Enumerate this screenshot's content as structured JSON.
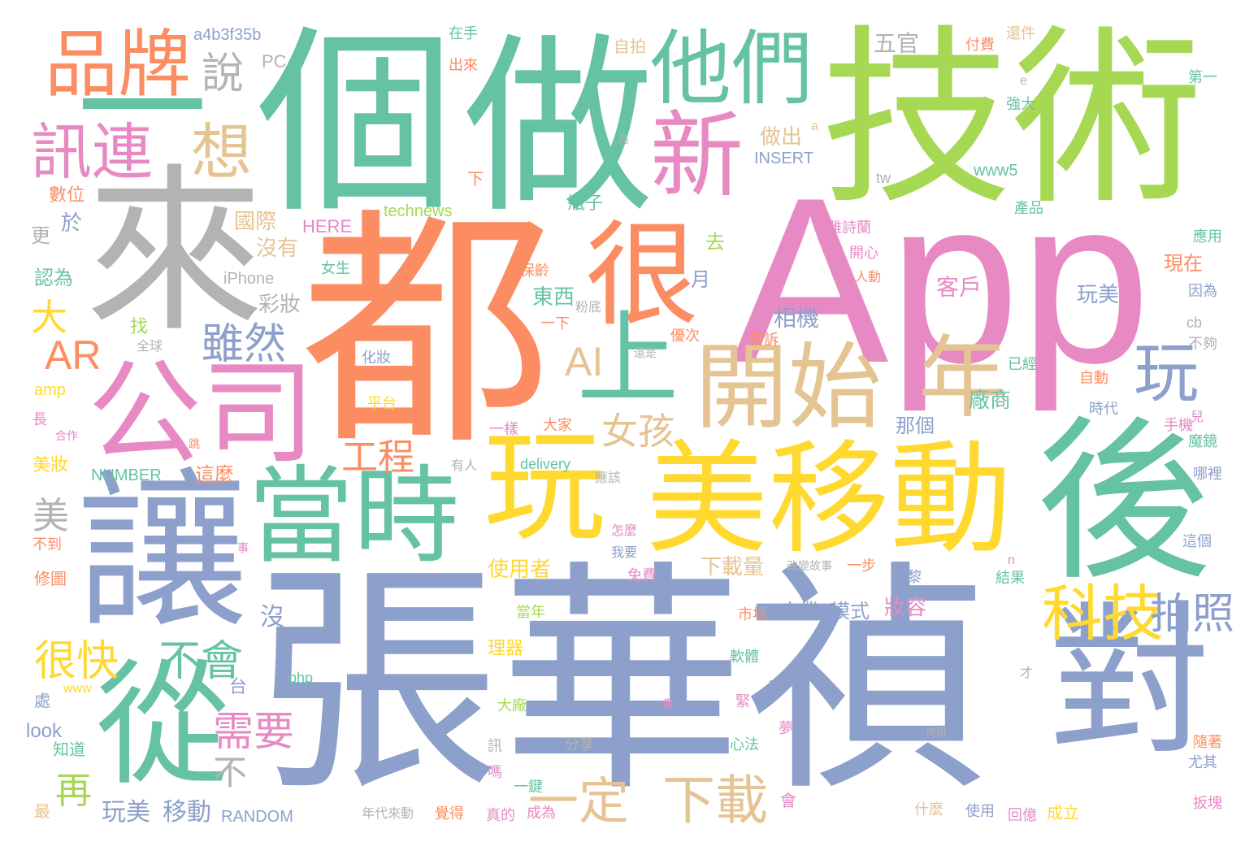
{
  "palette": {
    "green": "#66c2a5",
    "orange": "#fc8d62",
    "blue": "#8da0cb",
    "pink": "#e78ac3",
    "lime": "#a6d854",
    "yellow": "#ffd92f",
    "tan": "#e5c494",
    "gray": "#b3b3b3"
  },
  "words": [
    {
      "text": "張華禎",
      "color": "#8da0cb",
      "weight": 1.0
    },
    {
      "text": "App",
      "color": "#e78ac3",
      "weight": 0.98
    },
    {
      "text": "都",
      "color": "#fc8d62",
      "weight": 0.95
    },
    {
      "text": "個",
      "color": "#66c2a5",
      "weight": 0.9
    },
    {
      "text": "做",
      "color": "#66c2a5",
      "weight": 0.88
    },
    {
      "text": "技術",
      "color": "#a6d854",
      "weight": 0.85
    },
    {
      "text": "來",
      "color": "#b3b3b3",
      "weight": 0.8
    },
    {
      "text": "後",
      "color": "#66c2a5",
      "weight": 0.78
    },
    {
      "text": "讓",
      "color": "#8da0cb",
      "weight": 0.76
    },
    {
      "text": "美移動",
      "color": "#ffd92f",
      "weight": 0.74
    },
    {
      "text": "對",
      "color": "#8da0cb",
      "weight": 0.72
    },
    {
      "text": "一",
      "color": "#66c2a5",
      "weight": 0.7
    },
    {
      "text": "公司",
      "color": "#e78ac3",
      "weight": 0.66
    },
    {
      "text": "從",
      "color": "#66c2a5",
      "weight": 0.64
    },
    {
      "text": "當時",
      "color": "#66c2a5",
      "weight": 0.62
    },
    {
      "text": "玩",
      "color": "#ffd92f",
      "weight": 0.6
    },
    {
      "text": "很",
      "color": "#fc8d62",
      "weight": 0.58
    },
    {
      "text": "開始",
      "color": "#e5c494",
      "weight": 0.56
    },
    {
      "text": "新",
      "color": "#e78ac3",
      "weight": 0.52
    },
    {
      "text": "他們",
      "color": "#66c2a5",
      "weight": 0.5
    },
    {
      "text": "品牌",
      "color": "#fc8d62",
      "weight": 0.48
    },
    {
      "text": "上",
      "color": "#66c2a5",
      "weight": 0.46
    },
    {
      "text": "年",
      "color": "#e5c494",
      "weight": 0.44
    },
    {
      "text": "玩",
      "color": "#8da0cb",
      "weight": 0.42
    },
    {
      "text": "訊連",
      "color": "#e78ac3",
      "weight": 0.4
    },
    {
      "text": "想",
      "color": "#e5c494",
      "weight": 0.38
    },
    {
      "text": "科技",
      "color": "#ffd92f",
      "weight": 0.36
    },
    {
      "text": "AR",
      "color": "#fc8d62",
      "weight": 0.34
    },
    {
      "text": "AI",
      "color": "#e5c494",
      "weight": 0.33
    },
    {
      "text": "說",
      "color": "#b3b3b3",
      "weight": 0.32
    },
    {
      "text": "下載",
      "color": "#e5c494",
      "weight": 0.31
    },
    {
      "text": "一定",
      "color": "#e5c494",
      "weight": 0.3
    },
    {
      "text": "雖然",
      "color": "#8da0cb",
      "weight": 0.3
    },
    {
      "text": "拍照",
      "color": "#8da0cb",
      "weight": 0.29
    },
    {
      "text": "很快",
      "color": "#ffd92f",
      "weight": 0.28
    },
    {
      "text": "不會",
      "color": "#66c2a5",
      "weight": 0.28
    },
    {
      "text": "女孩",
      "color": "#e5c494",
      "weight": 0.27
    },
    {
      "text": "工程",
      "color": "#fc8d62",
      "weight": 0.26
    },
    {
      "text": "需要",
      "color": "#e78ac3",
      "weight": 0.26
    },
    {
      "text": "再",
      "color": "#a6d854",
      "weight": 0.25
    },
    {
      "text": "大",
      "color": "#ffd92f",
      "weight": 0.24
    },
    {
      "text": "美",
      "color": "#b3b3b3",
      "weight": 0.24
    },
    {
      "text": "不",
      "color": "#b3b3b3",
      "weight": 0.22
    },
    {
      "text": "五官",
      "color": "#b3b3b3",
      "weight": 0.2
    },
    {
      "text": "廠商",
      "color": "#66c2a5",
      "weight": 0.2
    },
    {
      "text": "東西",
      "color": "#66c2a5",
      "weight": 0.2
    },
    {
      "text": "做出",
      "color": "#e5c494",
      "weight": 0.2
    },
    {
      "text": "國際",
      "color": "#e5c494",
      "weight": 0.2
    },
    {
      "text": "沒有",
      "color": "#e5c494",
      "weight": 0.2
    },
    {
      "text": "玩美",
      "color": "#8da0cb",
      "weight": 0.2
    },
    {
      "text": "移動",
      "color": "#8da0cb",
      "weight": 0.2
    },
    {
      "text": "玩美",
      "color": "#8da0cb",
      "weight": 0.2
    },
    {
      "text": "相機",
      "color": "#8da0cb",
      "weight": 0.2
    },
    {
      "text": "客戶",
      "color": "#e78ac3",
      "weight": 0.2
    },
    {
      "text": "彩妝",
      "color": "#b3b3b3",
      "weight": 0.2
    },
    {
      "text": "妝容",
      "color": "#e78ac3",
      "weight": 0.2
    },
    {
      "text": "那個",
      "color": "#8da0cb",
      "weight": 0.19
    },
    {
      "text": "商業",
      "color": "#8da0cb",
      "weight": 0.19
    },
    {
      "text": "模式",
      "color": "#8da0cb",
      "weight": 0.19
    },
    {
      "text": "下載量",
      "color": "#e5c494",
      "weight": 0.19
    },
    {
      "text": "使用者",
      "color": "#ffd92f",
      "weight": 0.19
    },
    {
      "text": "現在",
      "color": "#fc8d62",
      "weight": 0.18
    },
    {
      "text": "PC",
      "color": "#b3b3b3",
      "weight": 0.18
    },
    {
      "text": "沒",
      "color": "#8da0cb",
      "weight": 0.18
    },
    {
      "text": "美妝",
      "color": "#ffd92f",
      "weight": 0.17
    },
    {
      "text": "這麼",
      "color": "#fc8d62",
      "weight": 0.17
    },
    {
      "text": "瓶子",
      "color": "#66c2a5",
      "weight": 0.17
    },
    {
      "text": "月",
      "color": "#8da0cb",
      "weight": 0.17
    },
    {
      "text": "去",
      "color": "#a6d854",
      "weight": 0.17
    },
    {
      "text": "於",
      "color": "#8da0cb",
      "weight": 0.17
    },
    {
      "text": "更",
      "color": "#b3b3b3",
      "weight": 0.17
    },
    {
      "text": "認為",
      "color": "#66c2a5",
      "weight": 0.16
    },
    {
      "text": "數位",
      "color": "#fc8d62",
      "weight": 0.16
    },
    {
      "text": "a4b3f35b",
      "color": "#8da0cb",
      "weight": 0.16
    },
    {
      "text": "自拍",
      "color": "#e5c494",
      "weight": 0.16
    },
    {
      "text": "雅詩蘭",
      "color": "#e78ac3",
      "weight": 0.15
    },
    {
      "text": "technews",
      "color": "#a6d854",
      "weight": 0.15
    },
    {
      "text": "HERE",
      "color": "#e78ac3",
      "weight": 0.15
    },
    {
      "text": "iPhone",
      "color": "#b3b3b3",
      "weight": 0.15
    },
    {
      "text": "INSERT",
      "color": "#8da0cb",
      "weight": 0.15
    },
    {
      "text": "NUMBER",
      "color": "#66c2a5",
      "weight": 0.15
    },
    {
      "text": "RANDOM",
      "color": "#8da0cb",
      "weight": 0.15
    },
    {
      "text": "delivery",
      "color": "#66c2a5",
      "weight": 0.15
    },
    {
      "text": "www5",
      "color": "#66c2a5",
      "weight": 0.15
    },
    {
      "text": "amp",
      "color": "#ffd92f",
      "weight": 0.15
    },
    {
      "text": "look",
      "color": "#8da0cb",
      "weight": 0.15
    },
    {
      "text": "php",
      "color": "#66c2a5",
      "weight": 0.14
    },
    {
      "text": "www",
      "color": "#ffd92f",
      "weight": 0.13
    },
    {
      "text": "tw",
      "color": "#b3b3b3",
      "weight": 0.13
    },
    {
      "text": "cb",
      "color": "#b3b3b3",
      "weight": 0.13
    },
    {
      "text": "a",
      "color": "#e5c494",
      "weight": 0.12
    },
    {
      "text": "e",
      "color": "#b3b3b3",
      "weight": 0.12
    },
    {
      "text": "n",
      "color": "#e78ac3",
      "weight": 0.12
    },
    {
      "text": "才",
      "color": "#b3b3b3",
      "weight": 0.12
    },
    {
      "text": "在手",
      "color": "#66c2a5",
      "weight": 0.14
    },
    {
      "text": "出來",
      "color": "#fc8d62",
      "weight": 0.14
    },
    {
      "text": "付費",
      "color": "#fc8d62",
      "weight": 0.14
    },
    {
      "text": "還件",
      "color": "#e5c494",
      "weight": 0.14
    },
    {
      "text": "第一",
      "color": "#66c2a5",
      "weight": 0.14
    },
    {
      "text": "強大",
      "color": "#66c2a5",
      "weight": 0.14
    },
    {
      "text": "產品",
      "color": "#66c2a5",
      "weight": 0.14
    },
    {
      "text": "應用",
      "color": "#66c2a5",
      "weight": 0.14
    },
    {
      "text": "因為",
      "color": "#8da0cb",
      "weight": 0.13
    },
    {
      "text": "不夠",
      "color": "#b3b3b3",
      "weight": 0.13
    },
    {
      "text": "自動",
      "color": "#fc8d62",
      "weight": 0.14
    },
    {
      "text": "時代",
      "color": "#8da0cb",
      "weight": 0.14
    },
    {
      "text": "手機",
      "color": "#e78ac3",
      "weight": 0.14
    },
    {
      "text": "魔鏡",
      "color": "#66c2a5",
      "weight": 0.14
    },
    {
      "text": "哪裡",
      "color": "#8da0cb",
      "weight": 0.13
    },
    {
      "text": "這個",
      "color": "#8da0cb",
      "weight": 0.14
    },
    {
      "text": "隨著",
      "color": "#fc8d62",
      "weight": 0.13
    },
    {
      "text": "尤其",
      "color": "#8da0cb",
      "weight": 0.13
    },
    {
      "text": "扳塊",
      "color": "#e78ac3",
      "weight": 0.13
    },
    {
      "text": "成立",
      "color": "#ffd92f",
      "weight": 0.14
    },
    {
      "text": "回億",
      "color": "#e78ac3",
      "weight": 0.13
    },
    {
      "text": "使用",
      "color": "#8da0cb",
      "weight": 0.14
    },
    {
      "text": "什麼",
      "color": "#e5c494",
      "weight": 0.13
    },
    {
      "text": "結果",
      "color": "#66c2a5",
      "weight": 0.14
    },
    {
      "text": "巴黎",
      "color": "#8da0cb",
      "weight": 0.14
    },
    {
      "text": "一步",
      "color": "#fc8d62",
      "weight": 0.14
    },
    {
      "text": "已經",
      "color": "#66c2a5",
      "weight": 0.14
    },
    {
      "text": "開心",
      "color": "#e78ac3",
      "weight": 0.14
    },
    {
      "text": "人動",
      "color": "#fc8d62",
      "weight": 0.13
    },
    {
      "text": "優次",
      "color": "#fc8d62",
      "weight": 0.14
    },
    {
      "text": "告訴",
      "color": "#fc8d62",
      "weight": 0.14
    },
    {
      "text": "粉底",
      "color": "#b3b3b3",
      "weight": 0.13
    },
    {
      "text": "一下",
      "color": "#fc8d62",
      "weight": 0.14
    },
    {
      "text": "大家",
      "color": "#fc8d62",
      "weight": 0.14
    },
    {
      "text": "一樣",
      "color": "#e78ac3",
      "weight": 0.14
    },
    {
      "text": "應該",
      "color": "#b3b3b3",
      "weight": 0.13
    },
    {
      "text": "怎麼",
      "color": "#e78ac3",
      "weight": 0.14
    },
    {
      "text": "我要",
      "color": "#8da0cb",
      "weight": 0.14
    },
    {
      "text": "免費",
      "color": "#e78ac3",
      "weight": 0.14
    },
    {
      "text": "當年",
      "color": "#a6d854",
      "weight": 0.14
    },
    {
      "text": "理器",
      "color": "#ffd92f",
      "weight": 0.15
    },
    {
      "text": "市場",
      "color": "#fc8d62",
      "weight": 0.14
    },
    {
      "text": "軟體",
      "color": "#66c2a5",
      "weight": 0.14
    },
    {
      "text": "緊",
      "color": "#e78ac3",
      "weight": 0.14
    },
    {
      "text": "心法",
      "color": "#66c2a5",
      "weight": 0.14
    },
    {
      "text": "大廠",
      "color": "#a6d854",
      "weight": 0.14
    },
    {
      "text": "分享",
      "color": "#b3b3b3",
      "weight": 0.14
    },
    {
      "text": "一鍵",
      "color": "#66c2a5",
      "weight": 0.14
    },
    {
      "text": "成為",
      "color": "#e78ac3",
      "weight": 0.14
    },
    {
      "text": "覺得",
      "color": "#fc8d62",
      "weight": 0.14
    },
    {
      "text": "真的",
      "color": "#e78ac3",
      "weight": 0.14
    },
    {
      "text": "年代來動",
      "color": "#b3b3b3",
      "weight": 0.13
    },
    {
      "text": "會",
      "color": "#e78ac3",
      "weight": 0.14
    },
    {
      "text": "夢",
      "color": "#e78ac3",
      "weight": 0.13
    },
    {
      "text": "訊",
      "color": "#b3b3b3",
      "weight": 0.13
    },
    {
      "text": "嗎",
      "color": "#e78ac3",
      "weight": 0.13
    },
    {
      "text": "最",
      "color": "#e5c494",
      "weight": 0.14
    },
    {
      "text": "知道",
      "color": "#66c2a5",
      "weight": 0.14
    },
    {
      "text": "處",
      "color": "#8da0cb",
      "weight": 0.14
    },
    {
      "text": "修圖",
      "color": "#fc8d62",
      "weight": 0.14
    },
    {
      "text": "不到",
      "color": "#fc8d62",
      "weight": 0.13
    },
    {
      "text": "合作",
      "color": "#e78ac3",
      "weight": 0.12
    },
    {
      "text": "長",
      "color": "#e78ac3",
      "weight": 0.13
    },
    {
      "text": "全球",
      "color": "#b3b3b3",
      "weight": 0.12
    },
    {
      "text": "化妝",
      "color": "#8da0cb",
      "weight": 0.13
    },
    {
      "text": "平台",
      "color": "#ffd92f",
      "weight": 0.13
    },
    {
      "text": "找",
      "color": "#a6d854",
      "weight": 0.14
    },
    {
      "text": "台",
      "color": "#8da0cb",
      "weight": 0.14
    },
    {
      "text": "下",
      "color": "#fc8d62",
      "weight": 0.14
    },
    {
      "text": "改變故事",
      "color": "#b3b3b3",
      "weight": 0.11
    },
    {
      "text": "有人",
      "color": "#b3b3b3",
      "weight": 0.13
    },
    {
      "text": "保齡",
      "color": "#fc8d62",
      "weight": 0.13
    },
    {
      "text": "女生",
      "color": "#66c2a5",
      "weight": 0.13
    },
    {
      "text": "還是",
      "color": "#b3b3b3",
      "weight": 0.12
    },
    {
      "text": "跳",
      "color": "#fc8d62",
      "weight": 0.12
    },
    {
      "text": "移動",
      "color": "#8da0cb",
      "weight": 0.11
    },
    {
      "text": "時間",
      "color": "#b3b3b3",
      "weight": 0.1
    },
    {
      "text": "事",
      "color": "#e78ac3",
      "weight": 0.11
    },
    {
      "text": "兒",
      "color": "#e78ac3",
      "weight": 0.13
    },
    {
      "text": "為",
      "color": "#b3b3b3",
      "weight": 0.11
    },
    {
      "text": "像",
      "color": "#e78ac3",
      "weight": 0.11
    }
  ]
}
